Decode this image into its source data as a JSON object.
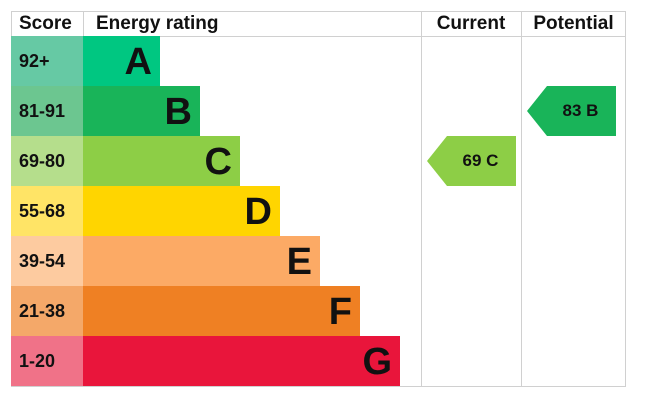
{
  "chart_data": {
    "type": "table",
    "headers": {
      "score": "Score",
      "rating": "Energy rating",
      "current": "Current",
      "potential": "Potential"
    },
    "bands": [
      {
        "letter": "A",
        "range": "92+",
        "color": "#00c781",
        "score_color": "#66c9a4"
      },
      {
        "letter": "B",
        "range": "81-91",
        "color": "#19b459",
        "score_color": "#6cc690"
      },
      {
        "letter": "C",
        "range": "69-80",
        "color": "#8dce46",
        "score_color": "#b5de8c"
      },
      {
        "letter": "D",
        "range": "55-68",
        "color": "#ffd500",
        "score_color": "#ffe466"
      },
      {
        "letter": "E",
        "range": "39-54",
        "color": "#fcaa65",
        "score_color": "#fdcba0"
      },
      {
        "letter": "F",
        "range": "21-38",
        "color": "#ef8023",
        "score_color": "#f4a869"
      },
      {
        "letter": "G",
        "range": "1-20",
        "color": "#e9153b",
        "score_color": "#f07288"
      }
    ],
    "current": {
      "value": 69,
      "band": "C",
      "label": "69  C"
    },
    "potential": {
      "value": 83,
      "band": "B",
      "label": "83  B"
    }
  }
}
